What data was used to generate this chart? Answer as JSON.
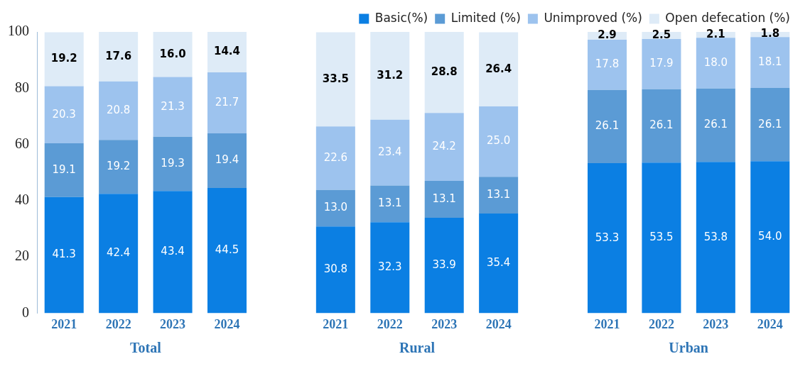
{
  "chart_data": {
    "type": "bar",
    "stacked": true,
    "categories": [
      "2021",
      "2022",
      "2023",
      "2024",
      null,
      "2021",
      "2022",
      "2023",
      "2024",
      null,
      "2021",
      "2022",
      "2023",
      "2024"
    ],
    "series": [
      {
        "name": "Basic(%)",
        "color": "#0b7fe3",
        "values": [
          41.3,
          42.4,
          43.4,
          44.5,
          null,
          30.8,
          32.3,
          33.9,
          35.4,
          null,
          53.3,
          53.5,
          53.8,
          54.0
        ],
        "value_labels": [
          "41.3",
          "42.4",
          "43.4",
          "44.5",
          null,
          "30.8",
          "32.3",
          "33.9",
          "35.4",
          null,
          "53.3",
          "53.5",
          "53.8",
          "54.0"
        ]
      },
      {
        "name": "Limited (%)",
        "color": "#5b9bd5",
        "values": [
          19.1,
          19.2,
          19.3,
          19.4,
          null,
          13.0,
          13.1,
          13.1,
          13.1,
          null,
          26.1,
          26.1,
          26.1,
          26.1
        ],
        "value_labels": [
          "19.1",
          "19.2",
          "19.3",
          "19.4",
          null,
          "13.0",
          "13.1",
          "13.1",
          "13.1",
          null,
          "26.1",
          "26.1",
          "26.1",
          "26.1"
        ]
      },
      {
        "name": "Unimproved (%)",
        "color": "#9dc3ee",
        "values": [
          20.3,
          20.8,
          21.3,
          21.7,
          null,
          22.6,
          23.4,
          24.2,
          25.0,
          null,
          17.8,
          17.9,
          18.0,
          18.1
        ],
        "value_labels": [
          "20.3",
          "20.8",
          "21.3",
          "21.7",
          null,
          "22.6",
          "23.4",
          "24.2",
          "25.0",
          null,
          "17.8",
          "17.9",
          "18.0",
          "18.1"
        ]
      },
      {
        "name": "Open defecation (%)",
        "color": "#deebf7",
        "values": [
          19.2,
          17.6,
          16.0,
          14.4,
          null,
          33.5,
          31.2,
          28.8,
          26.4,
          null,
          2.9,
          2.5,
          2.1,
          1.8
        ],
        "value_labels": [
          "19.2",
          "17.6",
          "16.0",
          "14.4",
          null,
          "33.5",
          "31.2",
          "28.8",
          "26.4",
          null,
          "2.9",
          "2.5",
          "2.1",
          "1.8"
        ]
      }
    ],
    "ylim": [
      0,
      100
    ],
    "yticks": [
      0,
      20,
      40,
      60,
      80,
      100
    ],
    "annotations": [
      "Total",
      "Rural",
      "Urban"
    ],
    "legend": "top right",
    "grid": false
  }
}
